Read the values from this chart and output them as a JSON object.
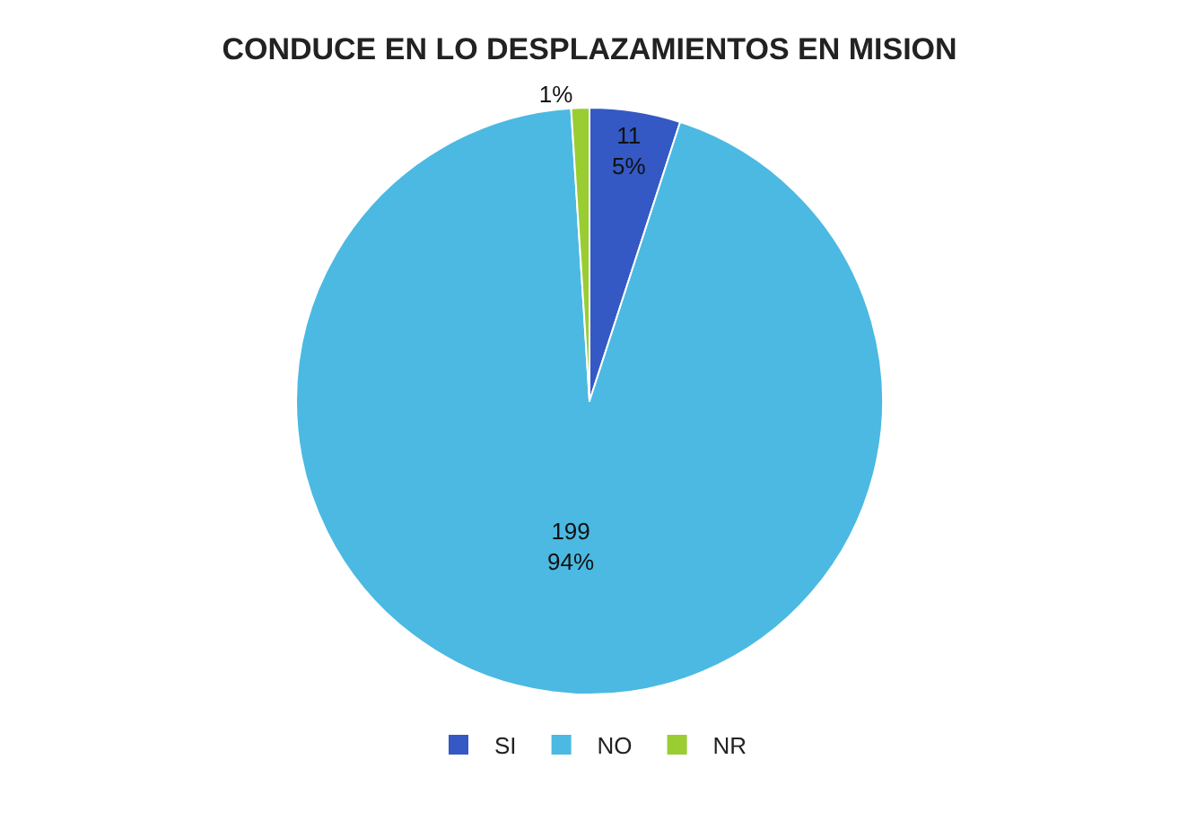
{
  "chart_data": {
    "type": "pie",
    "title": "CONDUCE EN LO DESPLAZAMIENTOS EN MISION",
    "categories": [
      "SI",
      "NO",
      "NR"
    ],
    "values": [
      5,
      94,
      1
    ],
    "value_labels": [
      "11\n5%",
      "199\n94%",
      "1%"
    ],
    "colors": [
      "#3459c4",
      "#4bb9e2",
      "#9acd32"
    ],
    "legend": "bottom"
  }
}
